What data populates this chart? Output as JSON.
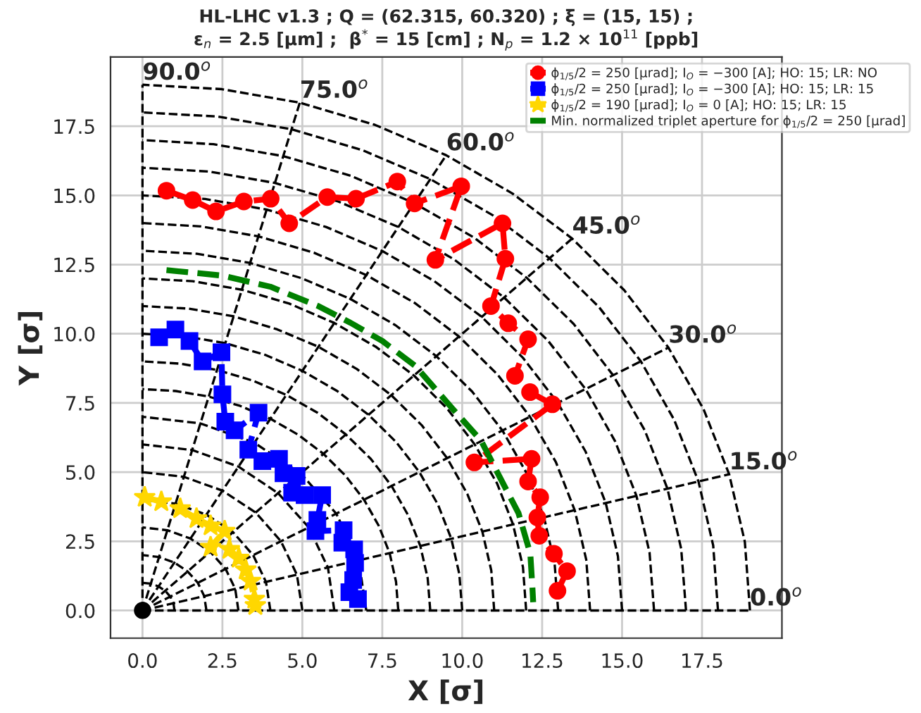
{
  "chart_data": {
    "type": "line",
    "title": "HL-LHC v1.3 ; Q = (62.315, 60.320) ; ξ = (15, 15) ;\nε$_{n}$ = 2.5 [μm] ;  β$^{*}$ = 15 [cm] ; N$_{p}$ = 1.2 × 10$^{11}$ [ppb]",
    "xlabel": "X [σ]",
    "ylabel": "Y [σ]",
    "xlim": [
      -1,
      20
    ],
    "ylim": [
      -1,
      20
    ],
    "xticks": [
      {
        "value": 0,
        "label": "0.0"
      },
      2.5,
      {
        "value": 5,
        "label": "5.0"
      },
      7.5,
      {
        "value": 10,
        "label": "10.0"
      },
      12.5,
      {
        "value": 15,
        "label": "15.0"
      },
      17.5
    ],
    "yticks": [
      {
        "value": 0,
        "label": "0.0"
      },
      2.5,
      {
        "value": 5,
        "label": "5.0"
      },
      7.5,
      {
        "value": 10,
        "label": "10.0"
      },
      12.5,
      {
        "value": 15,
        "label": "15.0"
      },
      17.5
    ],
    "grid": true,
    "legend": "top right",
    "annotations": [
      {
        "text": "0.0$^{o}$",
        "x": 19,
        "y": 0
      },
      {
        "text": "15.0$^{o}$",
        "x": 18.35,
        "y": 4.92
      },
      {
        "text": "30.0$^{o}$",
        "x": 16.45,
        "y": 9.5
      },
      {
        "text": "45.0$^{o}$",
        "x": 13.44,
        "y": 13.44
      },
      {
        "text": "60.0$^{o}$",
        "x": 9.5,
        "y": 16.45
      },
      {
        "text": "75.0$^{o}$",
        "x": 4.92,
        "y": 18.35
      },
      {
        "text": "90.0$^{o}$",
        "x": 0,
        "y": 19
      }
    ],
    "series": [
      {
        "color": "#000000",
        "marker": "none",
        "line_style": "dashed",
        "x": [
          0,
          19
        ],
        "values": [
          0,
          0
        ]
      },
      {
        "color": "#000000",
        "marker": "none",
        "line_style": "dashed",
        "x": [
          0,
          18.35
        ],
        "values": [
          0,
          4.92
        ]
      },
      {
        "color": "#000000",
        "marker": "none",
        "line_style": "dashed",
        "x": [
          0,
          16.45
        ],
        "values": [
          0,
          9.5
        ]
      },
      {
        "color": "#000000",
        "marker": "none",
        "line_style": "dashed",
        "x": [
          0,
          13.44
        ],
        "values": [
          0,
          13.44
        ]
      },
      {
        "color": "#000000",
        "marker": "none",
        "line_style": "dashed",
        "x": [
          0,
          9.5
        ],
        "values": [
          0,
          16.45
        ]
      },
      {
        "color": "#000000",
        "marker": "none",
        "line_style": "dashed",
        "x": [
          0,
          4.92
        ],
        "values": [
          0,
          18.35
        ]
      },
      {
        "color": "#000000",
        "marker": "none",
        "line_style": "dashed",
        "x": [
          0,
          0
        ],
        "values": [
          0,
          19
        ]
      },
      {
        "color": "#000000",
        "marker": "none",
        "line_style": "dashed",
        "x": [
          1,
          0.97,
          0.87,
          0.71,
          0.5,
          0.26,
          0
        ],
        "values": [
          0,
          0.26,
          0.5,
          0.71,
          0.87,
          0.97,
          1
        ]
      },
      {
        "color": "#000000",
        "marker": "none",
        "line_style": "dashed",
        "x": [
          2,
          1.93,
          1.73,
          1.41,
          1,
          0.52,
          0
        ],
        "values": [
          0,
          0.52,
          1,
          1.41,
          1.73,
          1.93,
          2
        ]
      },
      {
        "color": "#000000",
        "marker": "none",
        "line_style": "dashed",
        "x": [
          3,
          2.9,
          2.6,
          2.12,
          1.5,
          0.78,
          0
        ],
        "values": [
          0,
          0.78,
          1.5,
          2.12,
          2.6,
          2.9,
          3
        ]
      },
      {
        "color": "#000000",
        "marker": "none",
        "line_style": "dashed",
        "x": [
          4,
          3.86,
          3.46,
          2.83,
          2,
          1.04,
          0
        ],
        "values": [
          0,
          1.04,
          2,
          2.83,
          3.46,
          3.86,
          4
        ]
      },
      {
        "color": "#000000",
        "marker": "none",
        "line_style": "dashed",
        "x": [
          5,
          4.83,
          4.33,
          3.54,
          2.5,
          1.29,
          0
        ],
        "values": [
          0,
          1.29,
          2.5,
          3.54,
          4.33,
          4.83,
          5
        ]
      },
      {
        "color": "#000000",
        "marker": "none",
        "line_style": "dashed",
        "x": [
          6,
          5.8,
          5.2,
          4.24,
          3,
          1.55,
          0
        ],
        "values": [
          0,
          1.55,
          3,
          4.24,
          5.2,
          5.8,
          6
        ]
      },
      {
        "color": "#000000",
        "marker": "none",
        "line_style": "dashed",
        "x": [
          7,
          6.76,
          6.06,
          4.95,
          3.5,
          1.81,
          0
        ],
        "values": [
          0,
          1.81,
          3.5,
          4.95,
          6.06,
          6.76,
          7
        ]
      },
      {
        "color": "#000000",
        "marker": "none",
        "line_style": "dashed",
        "x": [
          8,
          7.93,
          7.73,
          7.39,
          6.93,
          6.35,
          5.66,
          4.87,
          4,
          3.06,
          2.07,
          1.04,
          0
        ],
        "values": [
          0,
          1.04,
          2.07,
          3.06,
          4,
          4.87,
          5.66,
          6.35,
          6.93,
          7.39,
          7.73,
          7.93,
          8
        ]
      },
      {
        "color": "#000000",
        "marker": "none",
        "line_style": "dashed",
        "x": [
          9,
          8.92,
          8.69,
          8.31,
          7.79,
          7.14,
          6.36,
          5.48,
          4.5,
          3.44,
          2.33,
          1.17,
          0
        ],
        "values": [
          0,
          1.17,
          2.33,
          3.44,
          4.5,
          5.48,
          6.36,
          7.14,
          7.79,
          8.31,
          8.69,
          8.92,
          9
        ]
      },
      {
        "color": "#000000",
        "marker": "none",
        "line_style": "dashed",
        "x": [
          10,
          9.91,
          9.66,
          9.24,
          8.66,
          7.93,
          7.07,
          6.09,
          5,
          3.83,
          2.59,
          1.31,
          0
        ],
        "values": [
          0,
          1.31,
          2.59,
          3.83,
          5,
          6.09,
          7.07,
          7.93,
          8.66,
          9.24,
          9.66,
          9.91,
          10
        ]
      },
      {
        "color": "#000000",
        "marker": "none",
        "line_style": "dashed",
        "x": [
          11,
          10.91,
          10.63,
          10.16,
          9.53,
          8.73,
          7.78,
          6.7,
          5.5,
          4.21,
          2.85,
          1.44,
          0
        ],
        "values": [
          0,
          1.44,
          2.85,
          4.21,
          5.5,
          6.7,
          7.78,
          8.73,
          9.53,
          10.16,
          10.63,
          10.91,
          11
        ]
      },
      {
        "color": "#000000",
        "marker": "none",
        "line_style": "dashed",
        "x": [
          12,
          11.9,
          11.59,
          11.09,
          10.39,
          9.52,
          8.49,
          7.31,
          6,
          4.59,
          3.11,
          1.57,
          0
        ],
        "values": [
          0,
          1.57,
          3.11,
          4.59,
          6,
          7.31,
          8.49,
          9.52,
          10.39,
          11.09,
          11.59,
          11.9,
          12
        ]
      },
      {
        "color": "#000000",
        "marker": "none",
        "line_style": "dashed",
        "x": [
          13,
          12.89,
          12.56,
          12.01,
          11.26,
          10.31,
          9.19,
          7.91,
          6.5,
          4.97,
          3.36,
          1.7,
          0
        ],
        "values": [
          0,
          1.7,
          3.36,
          4.97,
          6.5,
          7.91,
          9.19,
          10.31,
          11.26,
          12.01,
          12.56,
          12.89,
          13
        ]
      },
      {
        "color": "#000000",
        "marker": "none",
        "line_style": "dashed",
        "x": [
          14,
          13.88,
          13.52,
          12.93,
          12.12,
          11.11,
          9.9,
          8.52,
          7,
          5.36,
          3.62,
          1.83,
          0
        ],
        "values": [
          0,
          1.83,
          3.62,
          5.36,
          7,
          8.52,
          9.9,
          11.11,
          12.12,
          12.93,
          13.52,
          13.88,
          14
        ]
      },
      {
        "color": "#000000",
        "marker": "none",
        "line_style": "dashed",
        "x": [
          15,
          14.87,
          14.49,
          13.86,
          12.99,
          11.9,
          10.61,
          9.13,
          7.5,
          5.74,
          3.88,
          1.96,
          0
        ],
        "values": [
          0,
          1.96,
          3.88,
          5.74,
          7.5,
          9.13,
          10.61,
          11.9,
          12.99,
          13.86,
          14.49,
          14.87,
          15
        ]
      },
      {
        "color": "#000000",
        "marker": "none",
        "line_style": "dashed",
        "x": [
          16,
          15.86,
          15.45,
          14.78,
          13.86,
          12.69,
          11.31,
          9.74,
          8,
          6.12,
          4.14,
          2.09,
          0
        ],
        "values": [
          0,
          2.09,
          4.14,
          6.12,
          8,
          9.74,
          11.31,
          12.69,
          13.86,
          14.78,
          15.45,
          15.86,
          16
        ]
      },
      {
        "color": "#000000",
        "marker": "none",
        "line_style": "dashed",
        "x": [
          17,
          16.85,
          16.42,
          15.71,
          14.72,
          13.49,
          12.02,
          10.35,
          8.5,
          6.51,
          4.4,
          2.22,
          0
        ],
        "values": [
          0,
          2.22,
          4.4,
          6.51,
          8.5,
          10.35,
          12.02,
          13.49,
          14.72,
          15.71,
          16.42,
          16.85,
          17
        ]
      },
      {
        "color": "#000000",
        "marker": "none",
        "line_style": "dashed",
        "x": [
          18,
          17.85,
          17.39,
          16.63,
          15.59,
          14.28,
          12.73,
          10.96,
          9,
          6.89,
          4.66,
          2.35,
          0
        ],
        "values": [
          0,
          2.35,
          4.66,
          6.89,
          9,
          10.96,
          12.73,
          14.28,
          15.59,
          16.63,
          17.39,
          17.85,
          18
        ]
      },
      {
        "color": "#000000",
        "marker": "none",
        "line_style": "dashed",
        "x": [
          19,
          18.84,
          18.35,
          17.55,
          16.45,
          15.07,
          13.44,
          11.57,
          9.5,
          7.27,
          4.92,
          2.48,
          0
        ],
        "values": [
          0,
          2.48,
          4.92,
          7.27,
          9.5,
          11.57,
          13.44,
          15.07,
          16.45,
          17.55,
          18.35,
          18.84,
          19
        ]
      },
      {
        "type": "scatter",
        "color": "#000000",
        "marker": "circle",
        "x": [
          0
        ],
        "values": [
          0
        ]
      },
      {
        "name": "ϕ$_{1/5}$/2 = 250 [μrad]; I$_{O}$ = −300 [A]; HO: 15; LR: NO",
        "color": "#ff0000",
        "marker": "circle",
        "line_style": "dashed",
        "x": [
          0.75,
          1.57,
          2.3,
          3.17,
          4.01,
          4.59,
          5.78,
          6.68,
          7.97,
          8.51,
          9.97,
          9.16,
          11.26,
          11.35,
          10.9,
          11.44,
          12.06,
          11.65,
          12.12,
          12.82,
          10.38,
          12.17,
          12.06,
          12.44,
          12.35,
          12.41,
          12.87,
          13.28,
          12.98
        ],
        "values": [
          15.17,
          14.83,
          14.42,
          14.78,
          14.88,
          13.99,
          14.94,
          14.88,
          15.5,
          14.71,
          15.33,
          12.67,
          13.99,
          12.71,
          11.0,
          10.38,
          9.8,
          8.48,
          7.89,
          7.45,
          5.35,
          5.48,
          4.66,
          4.09,
          3.36,
          2.7,
          2.05,
          1.42,
          0.71
        ]
      },
      {
        "name": "ϕ$_{1/5}$/2 = 250 [μrad]; I$_{O}$ = −300 [A]; HO: 15; LR: 15",
        "color": "#0000ff",
        "marker": "square",
        "line_style": "dashed",
        "x": [
          0.52,
          1.03,
          1.47,
          1.88,
          2.47,
          2.5,
          2.59,
          2.88,
          3.63,
          3.31,
          3.75,
          4.27,
          4.41,
          4.82,
          4.68,
          5.07,
          5.62,
          5.47,
          5.41,
          6.29,
          6.25,
          6.62,
          6.65,
          6.59,
          6.47,
          6.74
        ],
        "values": [
          9.87,
          10.15,
          9.74,
          9.0,
          9.33,
          7.81,
          6.82,
          6.51,
          7.15,
          5.81,
          5.4,
          5.48,
          4.96,
          4.86,
          4.26,
          4.17,
          4.17,
          3.27,
          2.87,
          2.9,
          2.45,
          2.21,
          1.72,
          1.1,
          0.66,
          0.41
        ]
      },
      {
        "name": "ϕ$_{1/5}$/2 = 190 [μrad]; I$_{O}$ = 0 [A]; HO: 15; LR: 15",
        "color": "#ffd700",
        "marker": "star",
        "line_style": "dashed",
        "x": [
          0.07,
          0.59,
          1.18,
          1.69,
          2.13,
          2.57,
          2.13,
          2.72,
          3.01,
          3.23,
          3.38,
          3.5,
          3.53
        ],
        "values": [
          4.09,
          3.93,
          3.68,
          3.32,
          3.06,
          2.87,
          2.29,
          2.21,
          1.89,
          1.47,
          1.06,
          0.41,
          0.18
        ]
      },
      {
        "name": "Min. normalized triplet aperture for ϕ$_{1/5}$/2 = 250 [μrad]",
        "color": "#008000",
        "marker": "none",
        "line_style": "dashed",
        "x": [
          0.75,
          2.5,
          4.0,
          5.5,
          6.5,
          7.5,
          8.53,
          9.7,
          10.59,
          11.17,
          11.76,
          12.13,
          12.2,
          12.22
        ],
        "values": [
          12.3,
          12.1,
          11.7,
          11.0,
          10.4,
          9.74,
          8.84,
          7.29,
          6.14,
          4.83,
          3.52,
          2.05,
          0.74,
          0.3
        ]
      }
    ]
  }
}
